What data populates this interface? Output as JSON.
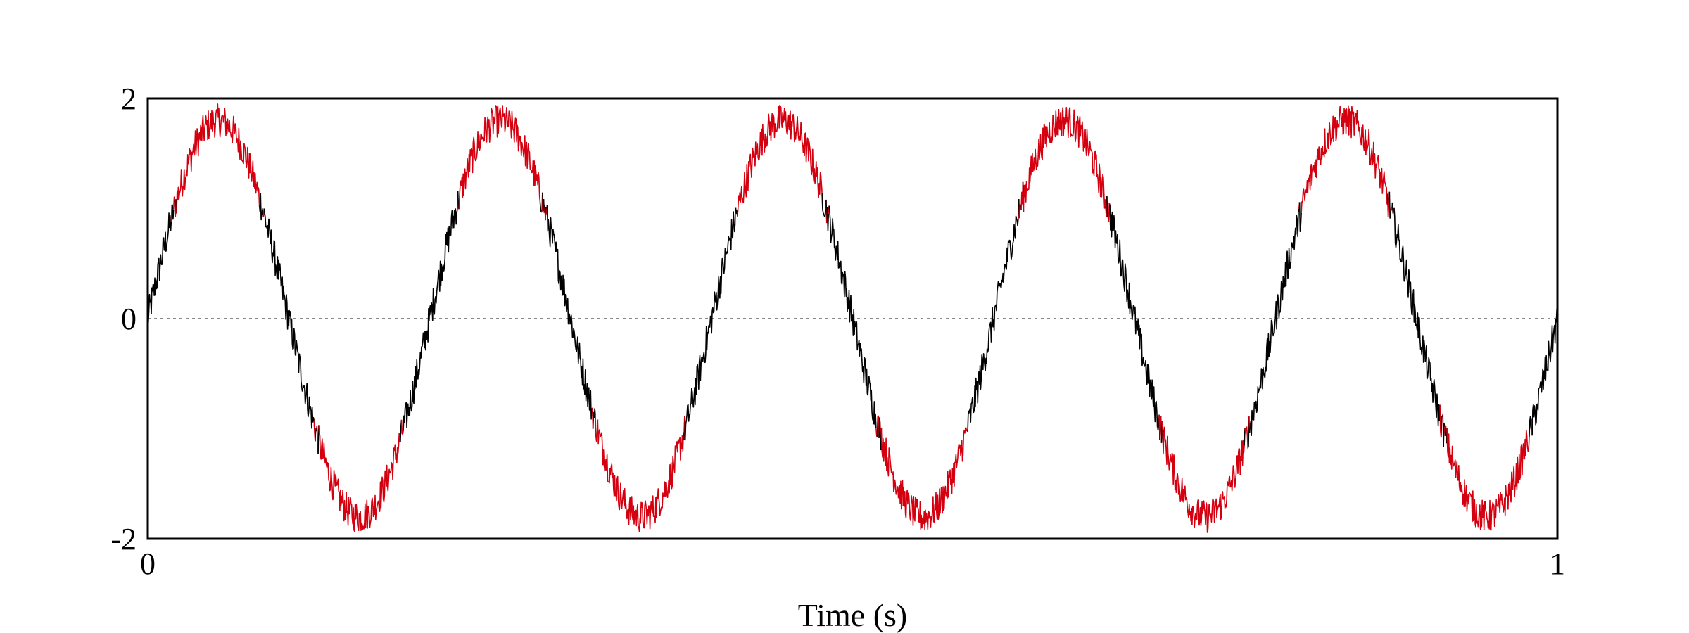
{
  "chart_data": {
    "type": "line",
    "title": "",
    "xlabel": "Time (s)",
    "ylabel": "",
    "xlim": [
      0,
      1
    ],
    "ylim": [
      -2,
      2
    ],
    "x_ticks": [
      {
        "value": 0,
        "label": "0"
      },
      {
        "value": 1,
        "label": "1"
      }
    ],
    "y_ticks": [
      {
        "value": 2,
        "label": "2"
      },
      {
        "value": 0,
        "label": "0"
      },
      {
        "value": -2,
        "label": "-2"
      }
    ],
    "grid": false,
    "zero_line": true,
    "legend": "none",
    "signal": {
      "shape": "sine",
      "amplitude": 1.8,
      "frequency_hz": 5,
      "noise_amplitude": 0.15,
      "highlight_threshold": 1.0
    },
    "series": [
      {
        "color": "#000000"
      },
      {
        "color": "#d4000f"
      }
    ],
    "colors": {
      "frame": "#000000",
      "zero_line": "#888888"
    }
  }
}
